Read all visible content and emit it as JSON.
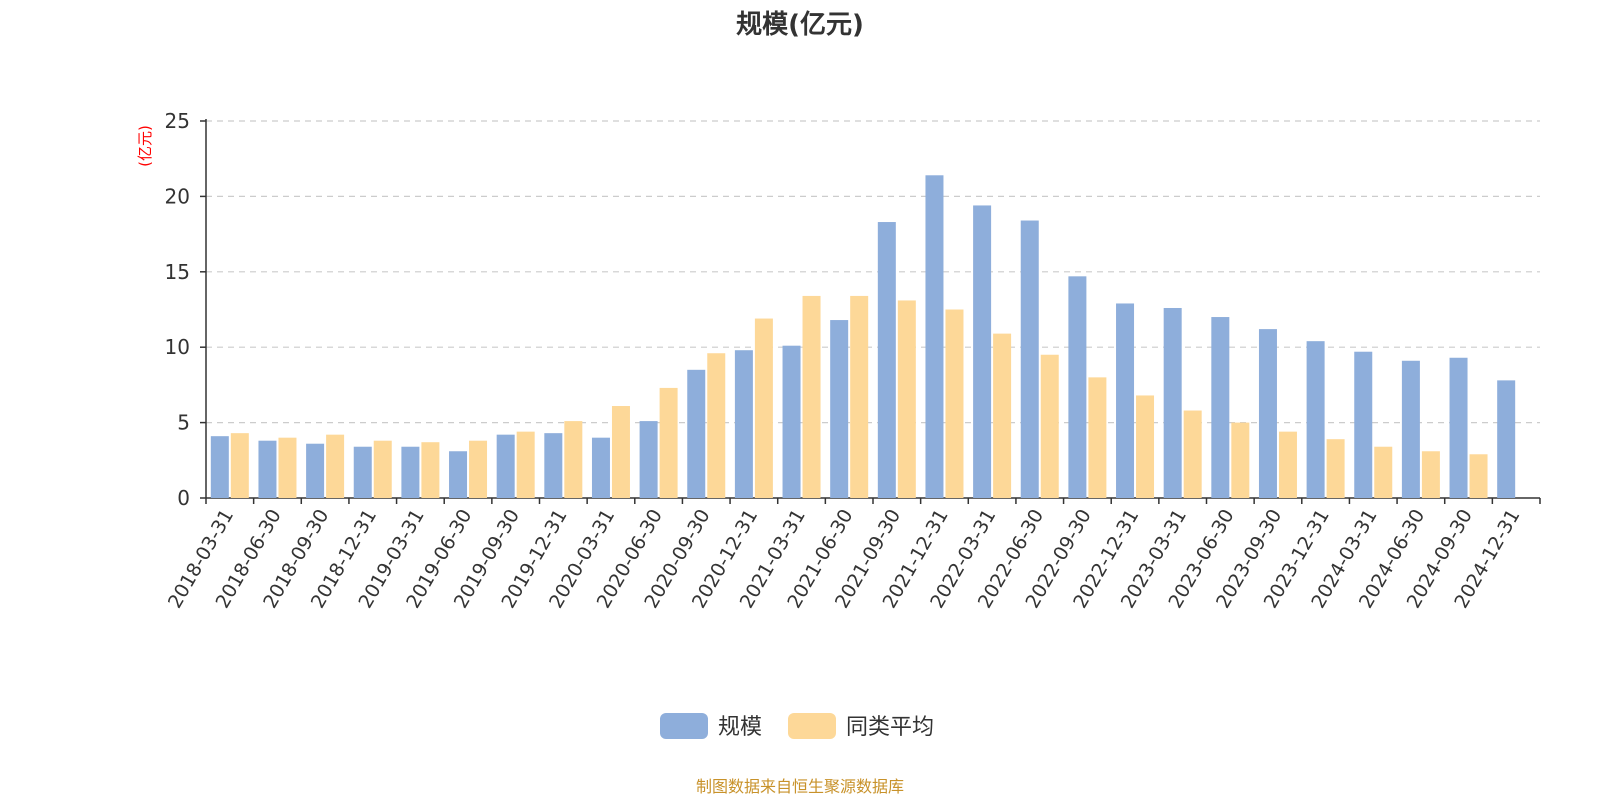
{
  "chart_data": {
    "type": "bar",
    "title": "规模(亿元)",
    "unit_label": "(亿元)",
    "ylim": [
      0,
      25
    ],
    "yticks": [
      0,
      5,
      10,
      15,
      20,
      25
    ],
    "grid": true,
    "legend_position": "bottom-center",
    "categories": [
      "2018-03-31",
      "2018-06-30",
      "2018-09-30",
      "2018-12-31",
      "2019-03-31",
      "2019-06-30",
      "2019-09-30",
      "2019-12-31",
      "2020-03-31",
      "2020-06-30",
      "2020-09-30",
      "2020-12-31",
      "2021-03-31",
      "2021-06-30",
      "2021-09-30",
      "2021-12-31",
      "2022-03-31",
      "2022-06-30",
      "2022-09-30",
      "2022-12-31",
      "2023-03-31",
      "2023-06-30",
      "2023-09-30",
      "2023-12-31",
      "2024-03-31",
      "2024-06-30",
      "2024-09-30",
      "2024-12-31"
    ],
    "series": [
      {
        "name": "规模",
        "color": "#8eaedb",
        "values": [
          4.1,
          3.8,
          3.6,
          3.4,
          3.4,
          3.1,
          4.2,
          4.3,
          4.0,
          5.1,
          8.5,
          9.8,
          10.1,
          11.8,
          18.3,
          21.4,
          19.4,
          18.4,
          14.7,
          12.9,
          12.6,
          12.0,
          11.2,
          10.4,
          9.7,
          9.1,
          9.3,
          7.8
        ]
      },
      {
        "name": "同类平均",
        "color": "#fdd898",
        "values": [
          4.3,
          4.0,
          4.2,
          3.8,
          3.7,
          3.8,
          4.4,
          5.1,
          6.1,
          7.3,
          9.6,
          11.9,
          13.4,
          13.4,
          13.1,
          12.5,
          10.9,
          9.5,
          8.0,
          6.8,
          5.8,
          5.0,
          4.4,
          3.9,
          3.4,
          3.1,
          2.9,
          null
        ]
      }
    ]
  },
  "footer": {
    "source": "制图数据来自恒生聚源数据库"
  }
}
